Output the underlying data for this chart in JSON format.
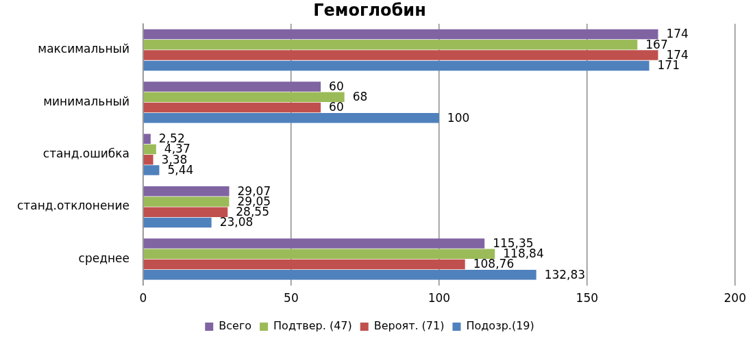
{
  "chart_data": {
    "type": "bar",
    "orientation": "horizontal",
    "title": "Гемоглобин",
    "categories": [
      "максимальный",
      "минимальный",
      "станд.ошибка",
      "станд.отклонение",
      "среднее"
    ],
    "series": [
      {
        "name": "Всего",
        "color": "#8064a2",
        "values": [
          174,
          60,
          2.52,
          29.07,
          115.35
        ],
        "value_labels": [
          "174",
          "60",
          "2,52",
          "29,07",
          "115,35"
        ]
      },
      {
        "name": "Подтвер. (47)",
        "color": "#9bbb59",
        "values": [
          167,
          68,
          4.37,
          29.05,
          118.84
        ],
        "value_labels": [
          "167",
          "68",
          "4,37",
          "29,05",
          "118,84"
        ]
      },
      {
        "name": "Вероят. (71)",
        "color": "#c0504d",
        "values": [
          174,
          60,
          3.38,
          28.55,
          108.76
        ],
        "value_labels": [
          "174",
          "60",
          "3,38",
          "28,55",
          "108,76"
        ]
      },
      {
        "name": "Подозр.(19)",
        "color": "#4f81bd",
        "values": [
          171,
          100,
          5.44,
          23.08,
          132.83
        ],
        "value_labels": [
          "171",
          "100",
          "5,44",
          "23,08",
          "132,83"
        ]
      }
    ],
    "xlim": [
      0,
      200
    ],
    "xticks": [
      0,
      50,
      100,
      150,
      200
    ],
    "grid": "x",
    "legend": "bottom"
  }
}
